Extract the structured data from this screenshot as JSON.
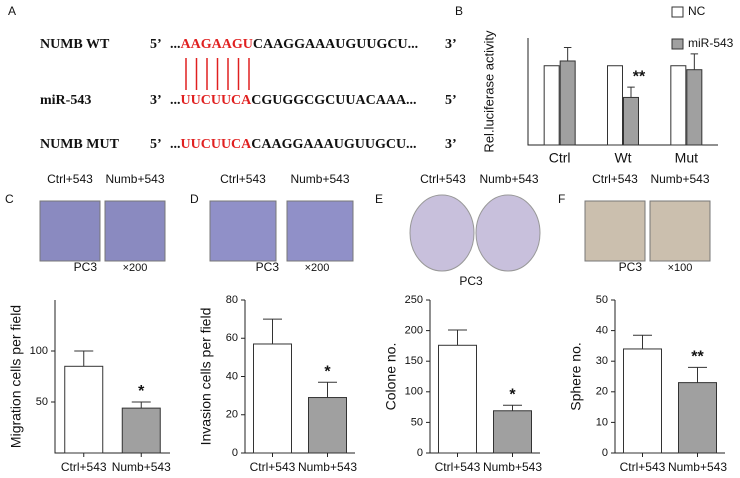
{
  "panel_a": {
    "label": "A",
    "rows": [
      {
        "name": "NUMB WT",
        "end5": "5’",
        "dots": "...",
        "red": "AAGAAGU",
        "rest": "CAAGGAAAUGUUGCU...",
        "end3": "3’"
      },
      {
        "name": "miR-543",
        "end5": "3’",
        "dots": "...",
        "red": "UUCUUCA",
        "rest": "CGUGGCGCUUACAAA...",
        "end3": "5’"
      },
      {
        "name": "NUMB MUT",
        "end5": "5’",
        "dots": "...",
        "red": "UUCUUCA",
        "rest": "CAAGGAAAUGUUGCU...",
        "end3": "3’"
      }
    ]
  },
  "chart_data": [
    {
      "type": "bar",
      "panel": "B",
      "ylabel": "Rel.luciferase activity",
      "categories": [
        "Ctrl",
        "Wt",
        "Mut"
      ],
      "series": [
        {
          "name": "NC",
          "color": "#ffffff",
          "values": [
            1,
            1,
            1
          ]
        },
        {
          "name": "miR-543",
          "color": "#a0a0a0",
          "values": [
            1.06,
            0.6,
            0.95
          ],
          "errors": [
            0.17,
            0.13,
            0.2
          ]
        }
      ],
      "ylim": [
        0,
        1.35
      ],
      "annotation": "**"
    },
    {
      "type": "bar",
      "panel": "C",
      "image_labels": [
        "Ctrl+543",
        "Numb+543"
      ],
      "cell_line": "PC3",
      "magnification": "×200",
      "ylabel": "Migration cells per field",
      "categories": [
        "Ctrl+543",
        "Numb+543"
      ],
      "values": [
        85,
        44
      ],
      "errors": [
        15,
        6
      ],
      "colors": [
        "#ffffff",
        "#a0a0a0"
      ],
      "ylim": [
        0,
        150
      ],
      "yticks": [
        50,
        100
      ],
      "annotation": "*"
    },
    {
      "type": "bar",
      "panel": "D",
      "image_labels": [
        "Ctrl+543",
        "Numb+543"
      ],
      "cell_line": "PC3",
      "magnification": "×200",
      "ylabel": "Invasion cells per field",
      "categories": [
        "Ctrl+543",
        "Numb+543"
      ],
      "values": [
        57,
        29
      ],
      "errors": [
        13,
        8
      ],
      "colors": [
        "#ffffff",
        "#a0a0a0"
      ],
      "ylim": [
        0,
        80
      ],
      "yticks": [
        0,
        20,
        40,
        60,
        80
      ],
      "annotation": "*"
    },
    {
      "type": "bar",
      "panel": "E",
      "image_labels": [
        "Ctrl+543",
        "Numb+543"
      ],
      "cell_line": "PC3",
      "ylabel": "Colone no.",
      "categories": [
        "Ctrl+543",
        "Numb+543"
      ],
      "values": [
        176,
        69
      ],
      "errors": [
        25,
        9
      ],
      "colors": [
        "#ffffff",
        "#a0a0a0"
      ],
      "ylim": [
        0,
        250
      ],
      "yticks": [
        0,
        50,
        100,
        150,
        200,
        250
      ],
      "annotation": "*"
    },
    {
      "type": "bar",
      "panel": "F",
      "image_labels": [
        "Ctrl+543",
        "Numb+543"
      ],
      "cell_line": "PC3",
      "magnification": "×100",
      "ylabel": "Sphere no.",
      "categories": [
        "Ctrl+543",
        "Numb+543"
      ],
      "values": [
        34,
        23
      ],
      "errors": [
        4.5,
        5
      ],
      "colors": [
        "#ffffff",
        "#a0a0a0"
      ],
      "ylim": [
        0,
        50
      ],
      "yticks": [
        0,
        10,
        20,
        30,
        40,
        50
      ],
      "annotation": "**"
    }
  ]
}
